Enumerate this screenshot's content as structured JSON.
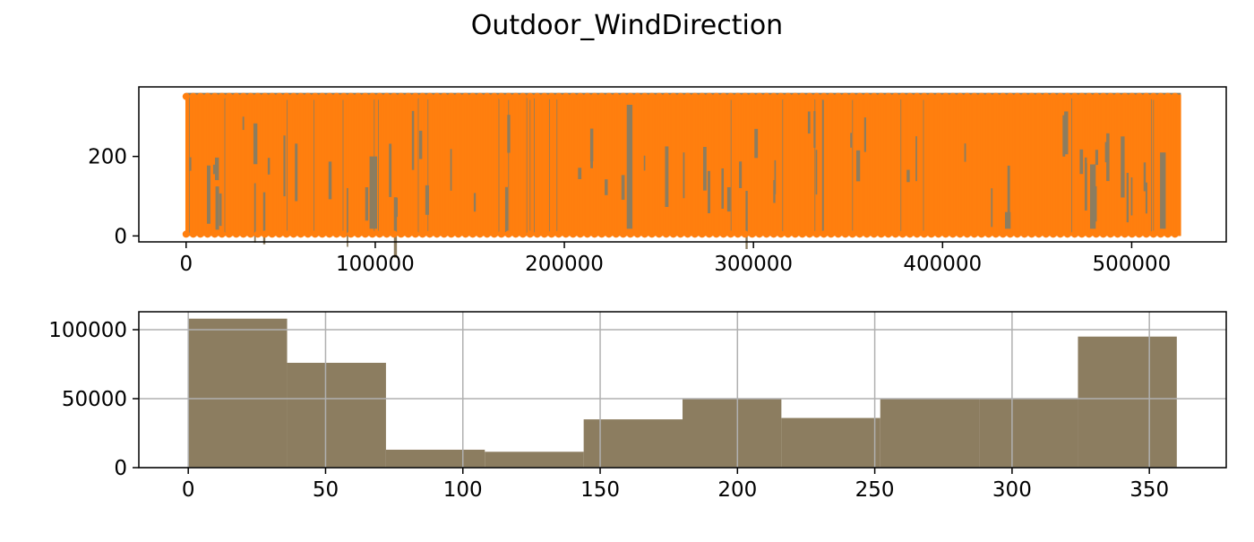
{
  "figure": {
    "title": "Outdoor_WindDirection"
  },
  "chart_data": [
    {
      "type": "scatter",
      "title": "",
      "xlabel": "",
      "ylabel": "",
      "xlim": [
        -25000,
        550000
      ],
      "ylim": [
        -15,
        375
      ],
      "grid": false,
      "x_ticks": [
        0,
        100000,
        200000,
        300000,
        400000,
        500000
      ],
      "x_tick_labels": [
        "0",
        "100000",
        "200000",
        "300000",
        "400000",
        "500000"
      ],
      "y_ticks": [
        0,
        200
      ],
      "y_tick_labels": [
        "0",
        "200"
      ],
      "x_range": [
        0,
        526000
      ],
      "y_range": [
        0,
        360
      ],
      "colors": {
        "line": "#8c7d60",
        "marker": "#ff7f0e"
      },
      "gaps": [
        {
          "x": [
            97000,
            101000
          ],
          "y_top": 200
        },
        {
          "x": [
            233000,
            236000
          ],
          "y_top": 330
        },
        {
          "x": [
            433000,
            436000
          ],
          "y_top": 60
        },
        {
          "x": [
            478000,
            481000
          ],
          "y_top": 180
        },
        {
          "x": [
            515000,
            518000
          ],
          "y_top": 210
        }
      ]
    },
    {
      "type": "bar",
      "title": "",
      "xlabel": "",
      "ylabel": "",
      "xlim": [
        -18,
        378
      ],
      "ylim": [
        0,
        113000
      ],
      "grid": true,
      "x_ticks": [
        0,
        50,
        100,
        150,
        200,
        250,
        300,
        350
      ],
      "x_tick_labels": [
        "0",
        "50",
        "100",
        "150",
        "200",
        "250",
        "300",
        "350"
      ],
      "y_ticks": [
        0,
        50000,
        100000
      ],
      "y_tick_labels": [
        "0",
        "50000",
        "100000"
      ],
      "bin_edges": [
        0,
        36,
        72,
        108,
        144,
        180,
        216,
        252,
        288,
        324,
        360
      ],
      "values": [
        108000,
        76000,
        13000,
        11500,
        35000,
        50000,
        36000,
        50000,
        50000,
        95000
      ],
      "color": "#8c7d60"
    }
  ]
}
